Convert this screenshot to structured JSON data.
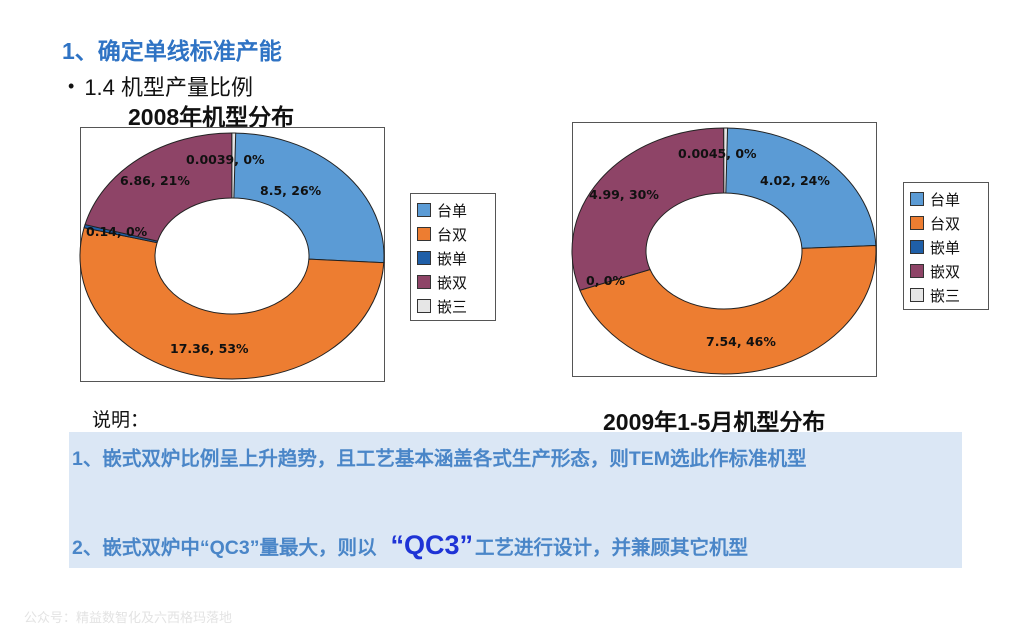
{
  "heading": "1、确定单线标准产能",
  "bullet": "1.4 机型产量比例",
  "colors": [
    "#5b9bd5",
    "#ed7d31",
    "#1f5fa8",
    "#8e4467",
    "#e6e6e6"
  ],
  "chart_data": [
    {
      "type": "pie",
      "subtype": "donut",
      "title": "2008年机型分布",
      "categories": [
        "台单",
        "台双",
        "嵌单",
        "嵌双",
        "嵌三"
      ],
      "values": [
        8.5,
        17.36,
        0.14,
        6.86,
        0.0039
      ],
      "data_labels": [
        "8.5, 26%",
        "17.36, 53%",
        "0.14, 0%",
        "6.86, 21%",
        "0.0039, 0%"
      ],
      "legend_position": "right"
    },
    {
      "type": "pie",
      "subtype": "donut",
      "title": "2009年1-5月机型分布",
      "categories": [
        "台单",
        "台双",
        "嵌单",
        "嵌双",
        "嵌三"
      ],
      "values": [
        4.02,
        7.54,
        0,
        4.99,
        0.0045
      ],
      "data_labels": [
        "4.02, 24%",
        "7.54, 46%",
        "0, 0%",
        "4.99, 30%",
        "0.0045, 0%"
      ],
      "legend_position": "right"
    }
  ],
  "notes": {
    "label": "说明：",
    "line1": "1、嵌式双炉比例呈上升趋势，且工艺基本涵盖各式生产形态，则TEM选此作标准机型",
    "line2_before": "2、嵌式双炉中“QC3”量最大，则以",
    "line2_highlight": "“QC3”",
    "line2_after": "工艺进行设计，并兼顾其它机型"
  },
  "footer": "公众号：精益数智化及六西格玛落地"
}
